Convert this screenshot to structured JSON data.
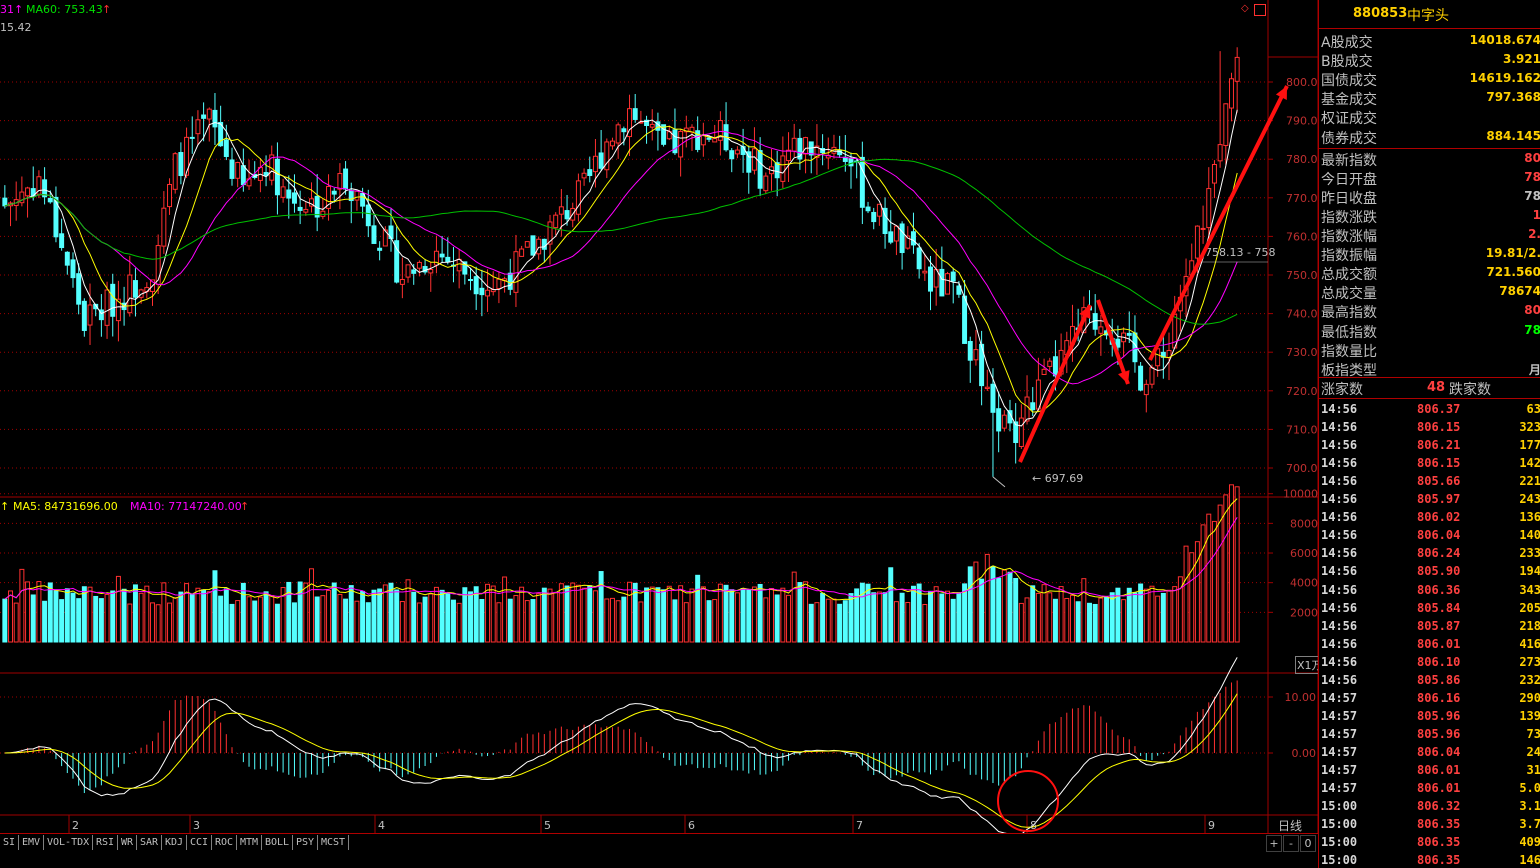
{
  "colors": {
    "up": "#ff3030",
    "down": "#54ffff",
    "ma_white": "#ffffff",
    "ma_yellow": "#ffff00",
    "ma_magenta": "#ff00ff",
    "ma_green": "#00c000",
    "grid": "#a00000",
    "label_yellow": "#ffd000"
  },
  "main_panel": {
    "ma_legend_a": "31↑",
    "ma60_label": "MA60: 753.43",
    "ma60_arrow": "↑",
    "top_value": "15.42",
    "low_marker": "697.69",
    "crosshair_label": "758.13 - 758",
    "y_ticks": [
      "800.0",
      "790.0",
      "780.0",
      "770.0",
      "760.0",
      "750.0",
      "740.0",
      "730.0",
      "720.0",
      "710.0",
      "700.0"
    ]
  },
  "volume_panel": {
    "ma5_label": "MA5: 84731696.00",
    "ma10_label": "MA10: 77147240.00",
    "arrow": "↑",
    "unit_label": "X1万",
    "y_ticks": [
      "10000",
      "8000",
      "6000",
      "4000",
      "2000"
    ]
  },
  "macd_panel": {
    "y_ticks": [
      "10.00",
      "0.00"
    ]
  },
  "x_axis": {
    "labels": [
      "2",
      "3",
      "4",
      "5",
      "6",
      "7",
      "8",
      "9"
    ],
    "period_label": "日线"
  },
  "tabs": [
    "SI",
    "EMV",
    "VOL-TDX",
    "RSI",
    "WR",
    "SAR",
    "KDJ",
    "CCI",
    "ROC",
    "MTM",
    "BOLL",
    "PSY",
    "MCST"
  ],
  "controls": [
    "+",
    "-",
    "0"
  ],
  "right_panel": {
    "code": "880853",
    "name": "中字头",
    "stats": [
      {
        "label": "A股成交",
        "value": "14018.674"
      },
      {
        "label": "B股成交",
        "value": "3.921"
      },
      {
        "label": "国债成交",
        "value": "14619.162"
      },
      {
        "label": "基金成交",
        "value": "797.368"
      },
      {
        "label": "权证成交",
        "value": ""
      },
      {
        "label": "债券成交",
        "value": "884.145"
      }
    ],
    "index_stats": [
      {
        "label": "最新指数",
        "value": "80"
      },
      {
        "label": "今日开盘",
        "value": "78"
      },
      {
        "label": "昨日收盘",
        "value": "78"
      },
      {
        "label": "指数涨跌",
        "value": "1"
      },
      {
        "label": "指数涨幅",
        "value": "2."
      },
      {
        "label": "指数振幅",
        "value": "19.81/2."
      },
      {
        "label": "总成交额",
        "value": "721.560"
      },
      {
        "label": "总成交量",
        "value": "78674"
      },
      {
        "label": "最高指数",
        "value": "80"
      },
      {
        "label": "最低指数",
        "value": "78"
      },
      {
        "label": "指数量比",
        "value": ""
      },
      {
        "label": "板指类型",
        "value": "月"
      }
    ],
    "rise_label": "涨家数",
    "rise_count": "48",
    "fall_label": "跌家数",
    "ticks": [
      {
        "time": "14:56",
        "price": "806.37",
        "vol": "63"
      },
      {
        "time": "14:56",
        "price": "806.15",
        "vol": "323"
      },
      {
        "time": "14:56",
        "price": "806.21",
        "vol": "177"
      },
      {
        "time": "14:56",
        "price": "806.15",
        "vol": "142"
      },
      {
        "time": "14:56",
        "price": "805.66",
        "vol": "221"
      },
      {
        "time": "14:56",
        "price": "805.97",
        "vol": "243"
      },
      {
        "time": "14:56",
        "price": "806.02",
        "vol": "136"
      },
      {
        "time": "14:56",
        "price": "806.04",
        "vol": "140"
      },
      {
        "time": "14:56",
        "price": "806.24",
        "vol": "233"
      },
      {
        "time": "14:56",
        "price": "805.90",
        "vol": "194"
      },
      {
        "time": "14:56",
        "price": "806.36",
        "vol": "343"
      },
      {
        "time": "14:56",
        "price": "805.84",
        "vol": "205"
      },
      {
        "time": "14:56",
        "price": "805.87",
        "vol": "218"
      },
      {
        "time": "14:56",
        "price": "806.01",
        "vol": "416"
      },
      {
        "time": "14:56",
        "price": "806.10",
        "vol": "273"
      },
      {
        "time": "14:56",
        "price": "805.86",
        "vol": "232"
      },
      {
        "time": "14:57",
        "price": "806.16",
        "vol": "290"
      },
      {
        "time": "14:57",
        "price": "805.96",
        "vol": "139"
      },
      {
        "time": "14:57",
        "price": "805.96",
        "vol": "73"
      },
      {
        "time": "14:57",
        "price": "806.04",
        "vol": "24"
      },
      {
        "time": "14:57",
        "price": "806.01",
        "vol": "31"
      },
      {
        "time": "14:57",
        "price": "806.01",
        "vol": "5.0"
      },
      {
        "time": "15:00",
        "price": "806.32",
        "vol": "3.1"
      },
      {
        "time": "15:00",
        "price": "806.35",
        "vol": "3.7"
      },
      {
        "time": "15:00",
        "price": "806.35",
        "vol": "409"
      },
      {
        "time": "15:00",
        "price": "806.35",
        "vol": "146"
      }
    ]
  }
}
